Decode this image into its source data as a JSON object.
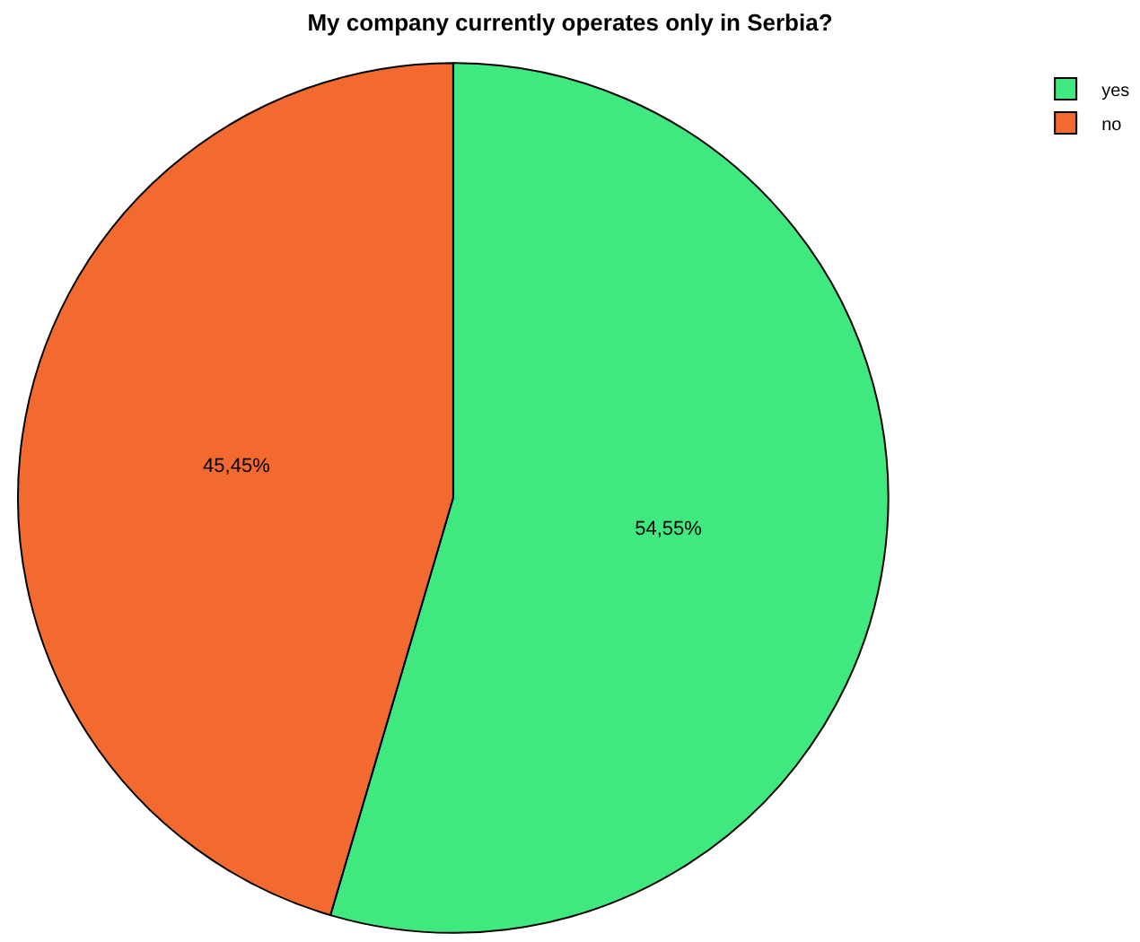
{
  "chart_data": {
    "type": "pie",
    "title": "My company currently operates only in Serbia?",
    "categories": [
      "yes",
      "no"
    ],
    "values": [
      54.55,
      45.45
    ],
    "colors": [
      "#40e880",
      "#f26a30"
    ],
    "value_labels": [
      "54,55%",
      "45,45%"
    ],
    "legend": "top right"
  }
}
